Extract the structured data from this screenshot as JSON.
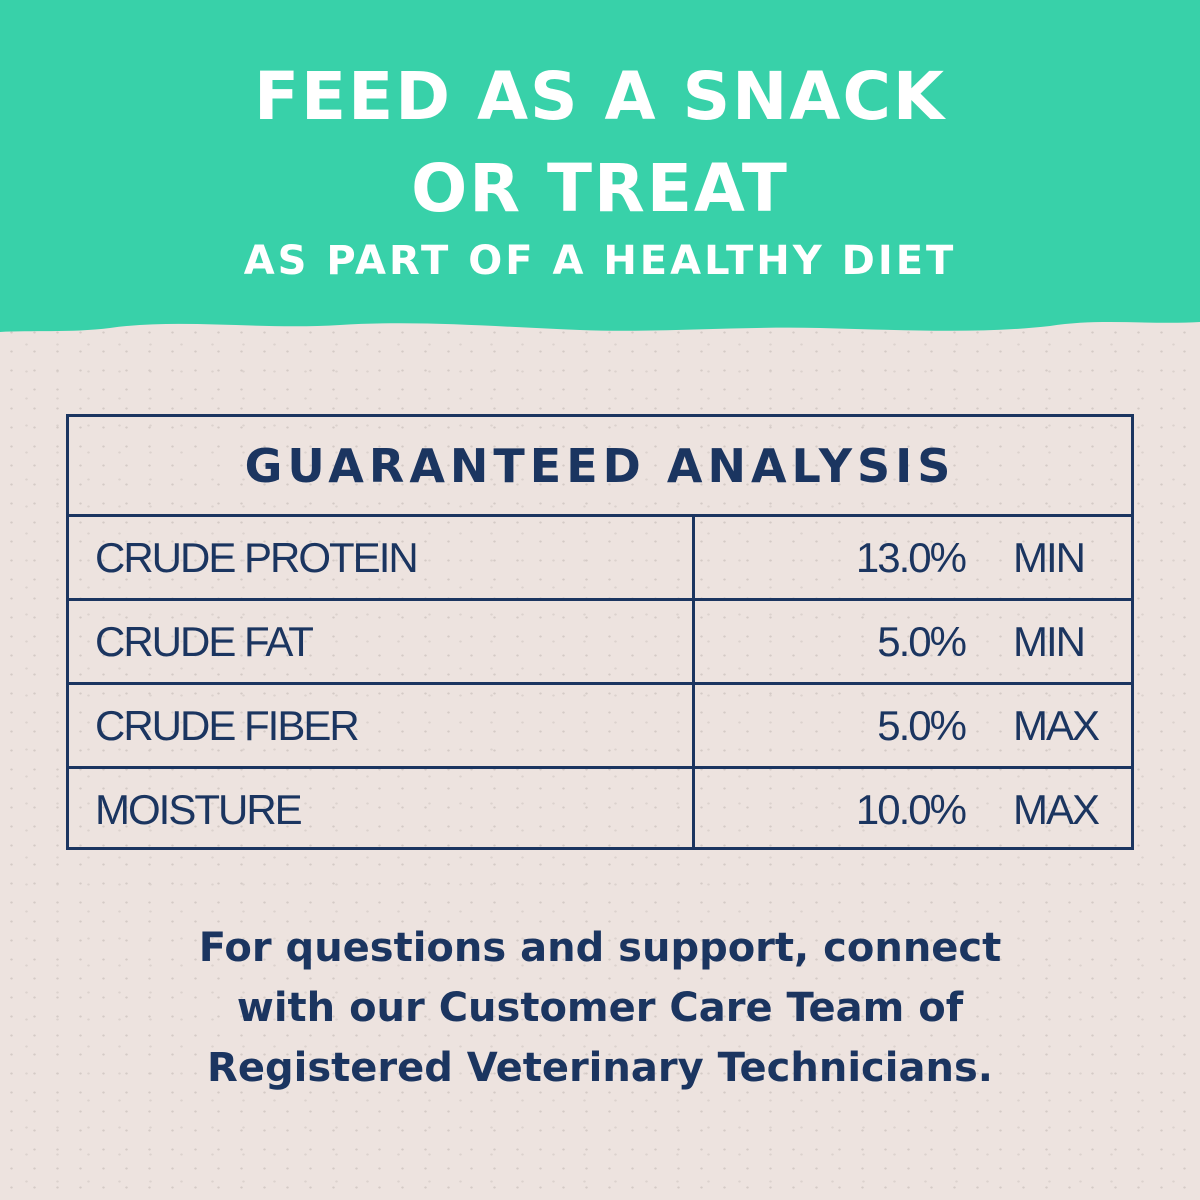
{
  "colors": {
    "banner": "#38d1a9",
    "background": "#ede3df",
    "text": "#1b3560"
  },
  "header": {
    "line1": "FEED AS A SNACK",
    "line2": "OR TREAT",
    "subtitle": "AS PART OF A HEALTHY DIET"
  },
  "table": {
    "title": "GUARANTEED ANALYSIS",
    "rows": [
      {
        "nutrient": "CRUDE PROTEIN",
        "value": "13.0%",
        "qualifier": "MIN"
      },
      {
        "nutrient": "CRUDE FAT",
        "value": "5.0%",
        "qualifier": "MIN"
      },
      {
        "nutrient": "CRUDE FIBER",
        "value": "5.0%",
        "qualifier": "MAX"
      },
      {
        "nutrient": "MOISTURE",
        "value": "10.0%",
        "qualifier": "MAX"
      }
    ]
  },
  "footer": {
    "line1": "For questions and support, connect",
    "line2": "with our Customer Care Team of",
    "line3": "Registered Veterinary Technicians."
  }
}
